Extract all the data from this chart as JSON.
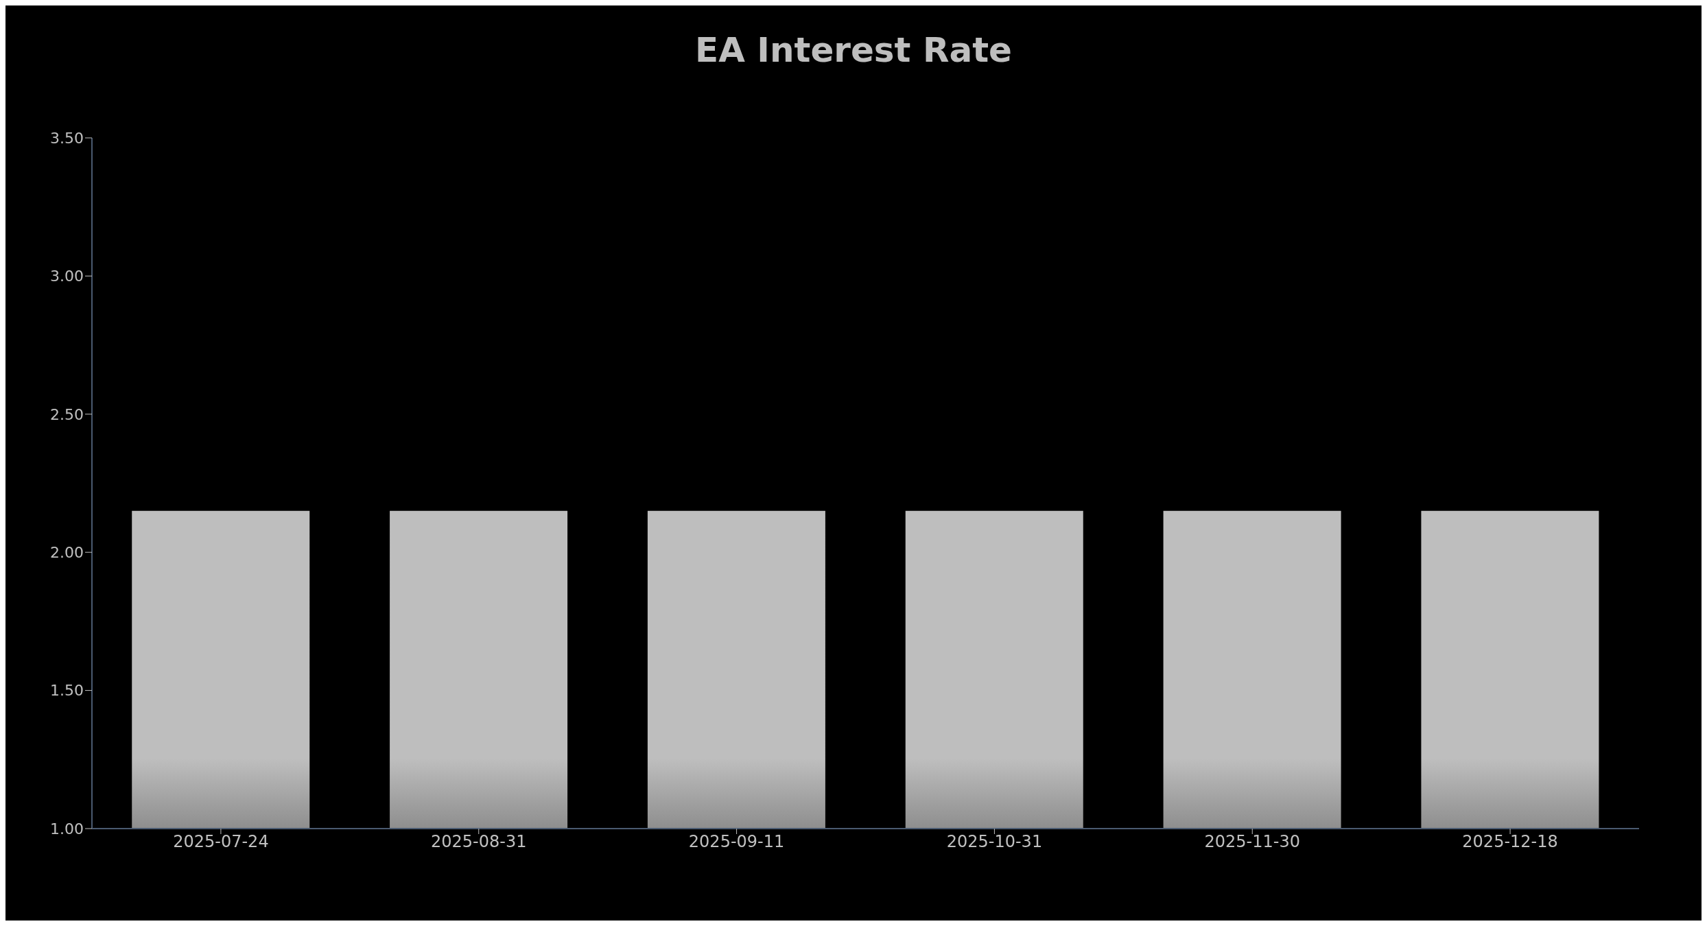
{
  "chart_data": {
    "type": "bar",
    "title": "EA Interest Rate",
    "categories": [
      "2025-07-24",
      "2025-08-31",
      "2025-09-11",
      "2025-10-31",
      "2025-11-30",
      "2025-12-18"
    ],
    "values": [
      2.15,
      2.15,
      2.15,
      2.15,
      2.15,
      2.15
    ],
    "color": "#bebebe",
    "ylim": [
      1,
      3.5
    ],
    "yticks": [
      {
        "value": 1,
        "label": "1.00"
      },
      {
        "value": 1.5,
        "label": "1.50"
      },
      {
        "value": 2,
        "label": "2.00"
      },
      {
        "value": 2.5,
        "label": "2.50"
      },
      {
        "value": 3,
        "label": "3.00"
      },
      {
        "value": 3.5,
        "label": "3.50"
      }
    ],
    "grid": false,
    "legend": false
  }
}
